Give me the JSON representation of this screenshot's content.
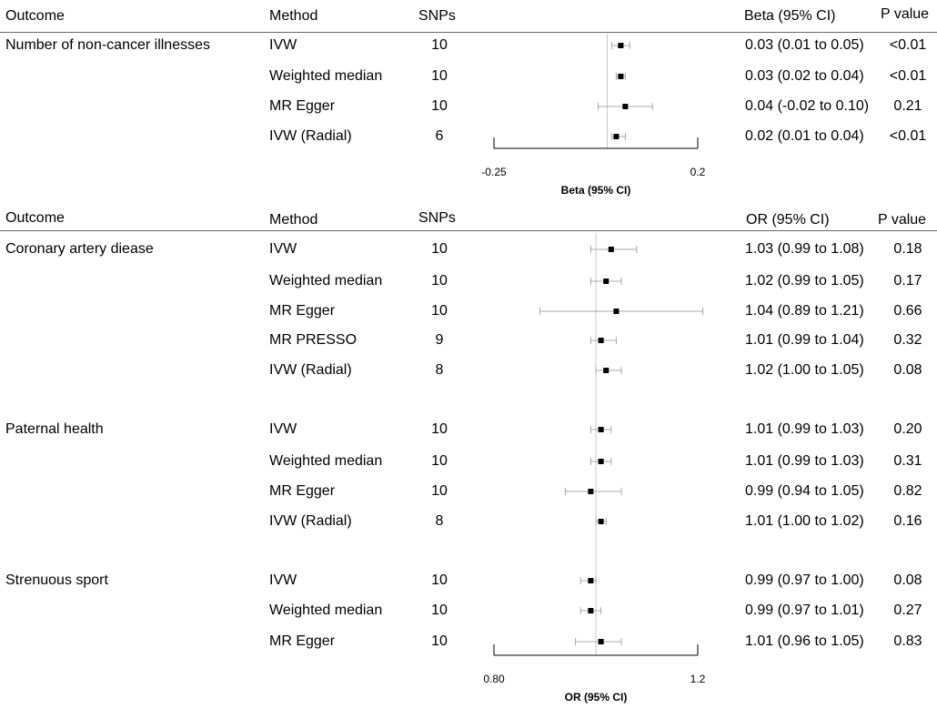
{
  "chart_data": [
    {
      "type": "forest",
      "columns": {
        "outcome": "Outcome",
        "method": "Method",
        "snps": "SNPs",
        "estimate": "Beta (95% CI)",
        "p": "P value"
      },
      "xlabel": "Beta (95% CI)",
      "xticks": [
        "-0.25",
        "0.2"
      ],
      "xlim": [
        -0.25,
        0.2
      ],
      "reference_line": 0,
      "groups": [
        {
          "outcome": "Number of non-cancer illnesses",
          "rows": [
            {
              "method": "IVW",
              "snps": "10",
              "est": 0.03,
              "lo": 0.01,
              "hi": 0.05,
              "ci_text": "0.03 (0.01 to 0.05)",
              "p": "<0.01"
            },
            {
              "method": "Weighted median",
              "snps": "10",
              "est": 0.03,
              "lo": 0.02,
              "hi": 0.04,
              "ci_text": "0.03 (0.02 to 0.04)",
              "p": "<0.01"
            },
            {
              "method": "MR Egger",
              "snps": "10",
              "est": 0.04,
              "lo": -0.02,
              "hi": 0.1,
              "ci_text": "0.04 (-0.02 to 0.10)",
              "p": "0.21"
            },
            {
              "method": "IVW (Radial)",
              "snps": "6",
              "est": 0.02,
              "lo": 0.01,
              "hi": 0.04,
              "ci_text": "0.02 (0.01 to 0.04)",
              "p": "<0.01"
            }
          ]
        }
      ]
    },
    {
      "type": "forest",
      "columns": {
        "outcome": "Outcome",
        "method": "Method",
        "snps": "SNPs",
        "estimate": "OR (95% CI)",
        "p": "P value"
      },
      "xlabel": "OR (95% CI)",
      "xticks": [
        "0.80",
        "1.2"
      ],
      "xlim": [
        0.8,
        1.2
      ],
      "reference_line": 1,
      "groups": [
        {
          "outcome": "Coronary artery diease",
          "rows": [
            {
              "method": "IVW",
              "snps": "10",
              "est": 1.03,
              "lo": 0.99,
              "hi": 1.08,
              "ci_text": "1.03 (0.99 to 1.08)",
              "p": "0.18"
            },
            {
              "method": "Weighted median",
              "snps": "10",
              "est": 1.02,
              "lo": 0.99,
              "hi": 1.05,
              "ci_text": "1.02 (0.99 to 1.05)",
              "p": "0.17"
            },
            {
              "method": "MR Egger",
              "snps": "10",
              "est": 1.04,
              "lo": 0.89,
              "hi": 1.21,
              "ci_text": "1.04 (0.89 to 1.21)",
              "p": "0.66"
            },
            {
              "method": "MR PRESSO",
              "snps": "9",
              "est": 1.01,
              "lo": 0.99,
              "hi": 1.04,
              "ci_text": "1.01 (0.99 to 1.04)",
              "p": "0.32"
            },
            {
              "method": "IVW (Radial)",
              "snps": "8",
              "est": 1.02,
              "lo": 1.0,
              "hi": 1.05,
              "ci_text": "1.02 (1.00 to 1.05)",
              "p": "0.08"
            }
          ]
        },
        {
          "outcome": "Paternal health",
          "rows": [
            {
              "method": "IVW",
              "snps": "10",
              "est": 1.01,
              "lo": 0.99,
              "hi": 1.03,
              "ci_text": "1.01 (0.99 to 1.03)",
              "p": "0.20"
            },
            {
              "method": "Weighted median",
              "snps": "10",
              "est": 1.01,
              "lo": 0.99,
              "hi": 1.03,
              "ci_text": "1.01 (0.99 to 1.03)",
              "p": "0.31"
            },
            {
              "method": "MR Egger",
              "snps": "10",
              "est": 0.99,
              "lo": 0.94,
              "hi": 1.05,
              "ci_text": "0.99 (0.94 to 1.05)",
              "p": "0.82"
            },
            {
              "method": "IVW (Radial)",
              "snps": "8",
              "est": 1.01,
              "lo": 1.0,
              "hi": 1.02,
              "ci_text": "1.01 (1.00 to 1.02)",
              "p": "0.16"
            }
          ]
        },
        {
          "outcome": "Strenuous sport",
          "rows": [
            {
              "method": "IVW",
              "snps": "10",
              "est": 0.99,
              "lo": 0.97,
              "hi": 1.0,
              "ci_text": "0.99 (0.97 to 1.00)",
              "p": "0.08"
            },
            {
              "method": "Weighted median",
              "snps": "10",
              "est": 0.99,
              "lo": 0.97,
              "hi": 1.01,
              "ci_text": "0.99 (0.97 to 1.01)",
              "p": "0.27"
            },
            {
              "method": "MR Egger",
              "snps": "10",
              "est": 1.01,
              "lo": 0.96,
              "hi": 1.05,
              "ci_text": "1.01 (0.96 to 1.05)",
              "p": "0.83"
            }
          ]
        }
      ]
    }
  ]
}
